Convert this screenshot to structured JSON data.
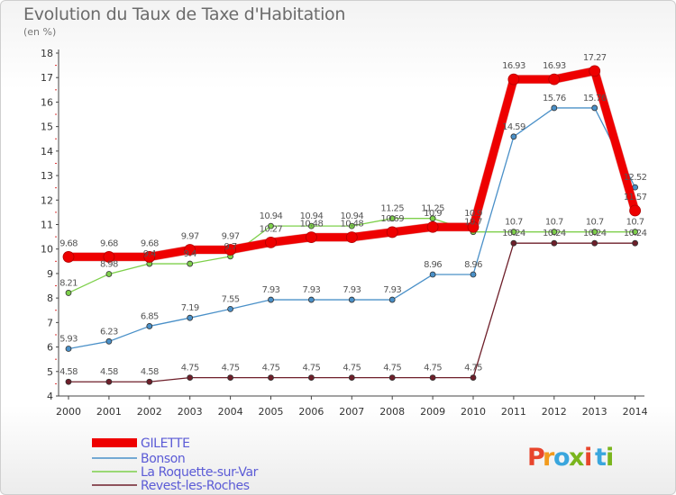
{
  "title": "Evolution du Taux de Taxe d'Habitation",
  "subtitle": "(en %)",
  "brand": {
    "letters": [
      "P",
      "r",
      "o",
      "x",
      "i",
      "t",
      "i"
    ],
    "colors": [
      "#e8452c",
      "#f29b1d",
      "#3aa6dd",
      "#7ab51d",
      "#e8452c",
      "#3aa6dd",
      "#7ab51d"
    ]
  },
  "chart_data": {
    "type": "line",
    "x": [
      "2000",
      "2001",
      "2002",
      "2003",
      "2004",
      "2005",
      "2006",
      "2007",
      "2008",
      "2009",
      "2010",
      "2011",
      "2012",
      "2013",
      "2014"
    ],
    "ylim": [
      4,
      18
    ],
    "yticks": [
      "4",
      "5",
      "6",
      "7",
      "8",
      "9",
      "10",
      "11",
      "12",
      "13",
      "14",
      "15",
      "16",
      "17",
      "18"
    ],
    "grid": false,
    "legend_position": "bottom-left",
    "series": [
      {
        "name": "Revest-les-Roches",
        "color": "#6e1f2a",
        "width": 1.3,
        "r": 3,
        "values": [
          4.58,
          4.58,
          4.58,
          4.75,
          4.75,
          4.75,
          4.75,
          4.75,
          4.75,
          4.75,
          4.75,
          10.24,
          10.24,
          10.24,
          10.24
        ],
        "labels": [
          "4.58",
          "4.58",
          "4.58",
          "4.75",
          "4.75",
          "4.75",
          "4.75",
          "4.75",
          "4.75",
          "4.75",
          "4.75",
          "10.24",
          "10.24",
          "10.24",
          "10.24"
        ]
      },
      {
        "name": "La Roquette-sur-Var",
        "color": "#7ed04b",
        "width": 1.3,
        "r": 3,
        "values": [
          8.21,
          8.98,
          9.4,
          9.4,
          9.7,
          10.94,
          10.94,
          10.94,
          11.25,
          11.25,
          10.7,
          10.7,
          10.7,
          10.7,
          10.7
        ],
        "labels": [
          "8.21",
          "8.98",
          "9.4",
          "9.4",
          "9.7",
          "10.94",
          "10.94",
          "10.94",
          "11.25",
          "11.25",
          "10.7",
          "10.7",
          "10.7",
          "10.7",
          "10.7"
        ]
      },
      {
        "name": "Bonson",
        "color": "#4a90c8",
        "width": 1.3,
        "r": 3,
        "values": [
          5.93,
          6.23,
          6.85,
          7.19,
          7.55,
          7.93,
          7.93,
          7.93,
          7.93,
          8.96,
          8.96,
          14.59,
          15.76,
          15.76,
          12.52
        ],
        "labels": [
          "5.93",
          "6.23",
          "6.85",
          "7.19",
          "7.55",
          "7.93",
          "7.93",
          "7.93",
          "7.93",
          "8.96",
          "8.96",
          "14.59",
          "15.76",
          "15.76",
          "12.52"
        ]
      },
      {
        "name": "GILETTE",
        "color": "#ee0000",
        "width": 9,
        "r": 6,
        "values": [
          9.68,
          9.68,
          9.68,
          9.97,
          9.97,
          10.27,
          10.48,
          10.48,
          10.69,
          10.9,
          10.9,
          16.93,
          16.93,
          17.27,
          11.57
        ],
        "labels": [
          "9.68",
          "9.68",
          "9.68",
          "9.97",
          "9.97",
          "10.27",
          "10.48",
          "10.48",
          "10.69",
          "10.9",
          "10.9",
          "16.93",
          "16.93",
          "17.27",
          "11.57"
        ]
      }
    ],
    "legend_order": [
      "GILETTE",
      "Bonson",
      "La Roquette-sur-Var",
      "Revest-les-Roches"
    ]
  }
}
